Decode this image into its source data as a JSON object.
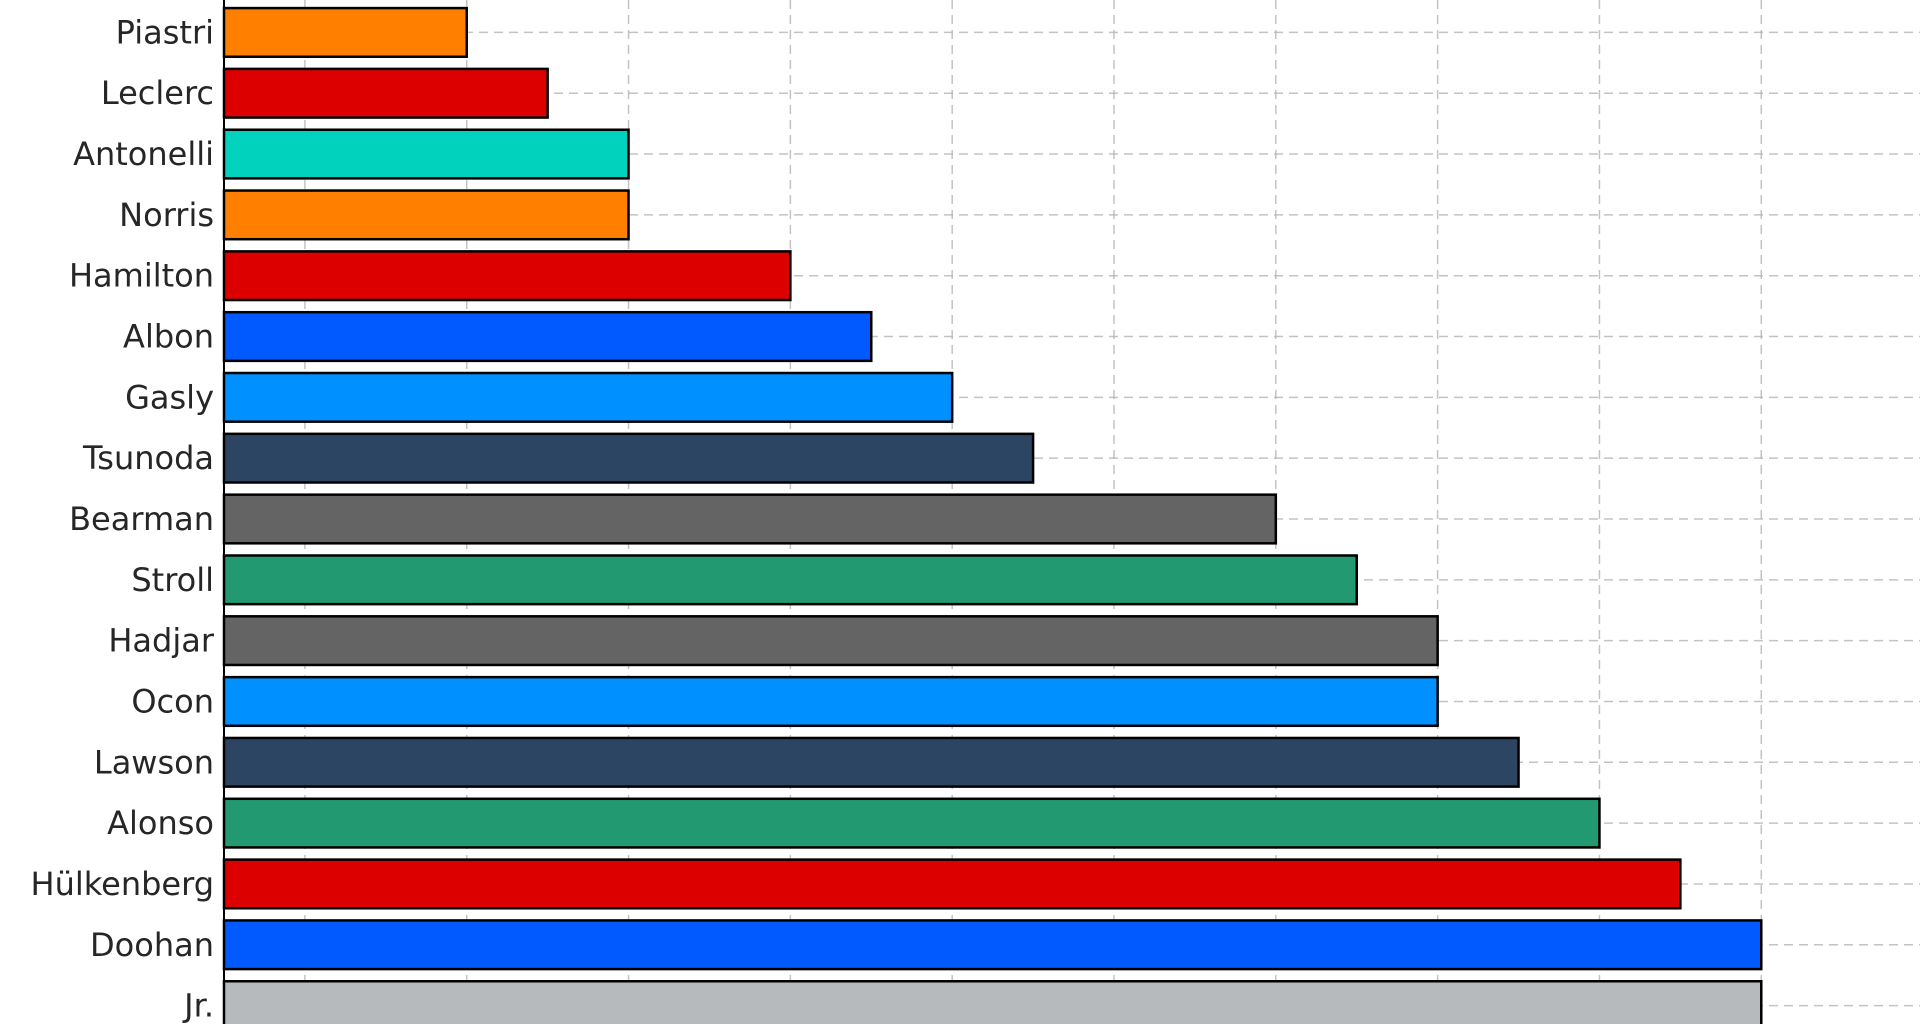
{
  "chart_data": {
    "type": "bar",
    "orientation": "horizontal",
    "categories": [
      "Piastri",
      "Leclerc",
      "Antonelli",
      "Norris",
      "Hamilton",
      "Albon",
      "Gasly",
      "Tsunoda",
      "Bearman",
      "Stroll",
      "Hadjar",
      "Ocon",
      "Lawson",
      "Alonso",
      "Hülkenberg",
      "Doohan",
      "Jr."
    ],
    "values": [
      3,
      4,
      5,
      5,
      7,
      8,
      9,
      10,
      13,
      14,
      15,
      15,
      16,
      17,
      18,
      19,
      19
    ],
    "colors": [
      "#FF8000",
      "#DC0000",
      "#00D2BE",
      "#FF8000",
      "#DC0000",
      "#005AFF",
      "#0090FF",
      "#2B4562",
      "#646464",
      "#229971",
      "#646464",
      "#0090FF",
      "#2B4562",
      "#229971",
      "#DC0000",
      "#005AFF",
      "#B6BABD"
    ],
    "xlim": [
      0,
      20.9
    ],
    "x_gridlines": [
      1,
      3,
      5,
      7,
      9,
      11,
      13,
      15,
      17,
      19,
      21
    ],
    "grid": true,
    "title": "",
    "xlabel": "",
    "ylabel": ""
  }
}
